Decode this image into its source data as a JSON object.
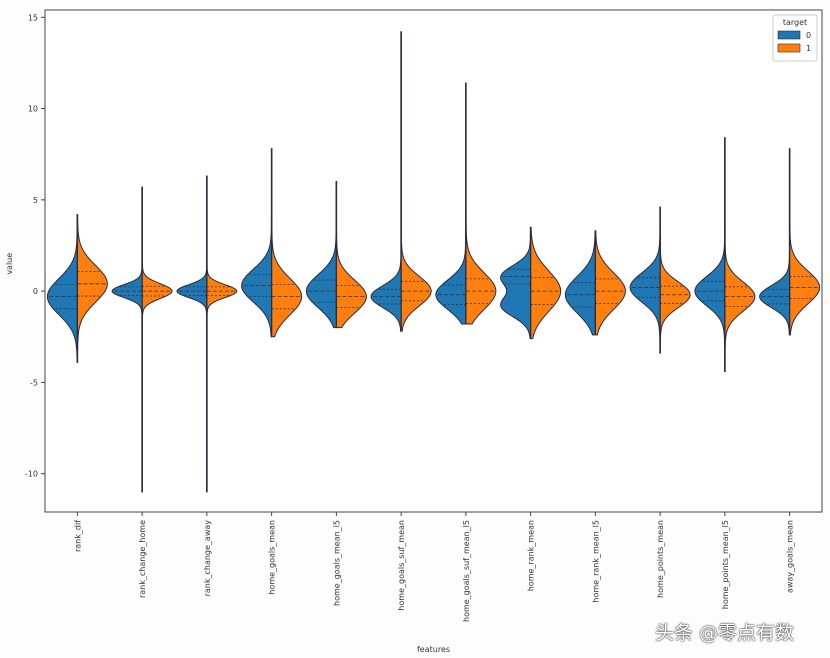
{
  "chart_data": {
    "type": "violin",
    "title": "",
    "xlabel": "features",
    "ylabel": "value",
    "ylim": [
      -12.1,
      15.4
    ],
    "yticks": [
      -10,
      -5,
      0,
      5,
      10,
      15
    ],
    "grid": false,
    "legend": {
      "title": "target",
      "placement": "top-right",
      "entries": [
        {
          "label": "0",
          "color": "#1f77b4"
        },
        {
          "label": "1",
          "color": "#ff7f0e"
        }
      ]
    },
    "categories": [
      "rank_dif",
      "rank_change_home",
      "rank_change_away",
      "home_goals_mean",
      "home_goals_mean_l5",
      "home_goals_suf_mean",
      "home_goals_suf_mean_l5",
      "home_rank_mean",
      "home_rank_mean_l5",
      "home_points_mean",
      "home_points_mean_l5",
      "away_goals_mean"
    ],
    "range": [
      [
        -3.9,
        4.2
      ],
      [
        -11,
        5.7
      ],
      [
        -11,
        6.3
      ],
      [
        -2.5,
        7.8
      ],
      [
        -2.0,
        6.0
      ],
      [
        -2.2,
        14.2
      ],
      [
        -1.8,
        11.4
      ],
      [
        -2.6,
        3.5
      ],
      [
        -2.4,
        3.3
      ],
      [
        -3.4,
        4.6
      ],
      [
        -4.4,
        8.4
      ],
      [
        -2.4,
        7.8
      ]
    ],
    "series": [
      {
        "name": "0",
        "color": "#1f77b4",
        "modes": [
          [
            [
              -0.3,
              1.0,
              1
            ]
          ],
          [
            [
              0,
              0.35,
              1
            ]
          ],
          [
            [
              0,
              0.35,
              1
            ]
          ],
          [
            [
              0.3,
              0.9,
              1
            ]
          ],
          [
            [
              0,
              0.9,
              1
            ]
          ],
          [
            [
              -0.3,
              0.6,
              1
            ]
          ],
          [
            [
              -0.2,
              0.8,
              1
            ]
          ],
          [
            [
              0.8,
              0.6,
              1
            ],
            [
              -0.8,
              0.6,
              1
            ]
          ],
          [
            [
              -0.2,
              1.0,
              1
            ]
          ],
          [
            [
              0.2,
              0.8,
              1
            ]
          ],
          [
            [
              0,
              0.8,
              1
            ]
          ],
          [
            [
              -0.3,
              0.6,
              1
            ]
          ]
        ]
      },
      {
        "name": "1",
        "color": "#ff7f0e",
        "modes": [
          [
            [
              0.4,
              1.0,
              1
            ]
          ],
          [
            [
              0,
              0.4,
              1
            ]
          ],
          [
            [
              0,
              0.35,
              1
            ]
          ],
          [
            [
              -0.3,
              1.0,
              1
            ]
          ],
          [
            [
              -0.3,
              0.9,
              1
            ]
          ],
          [
            [
              0,
              0.8,
              1
            ]
          ],
          [
            [
              0,
              1.0,
              1
            ]
          ],
          [
            [
              0,
              1.1,
              1
            ]
          ],
          [
            [
              0,
              1.0,
              1
            ]
          ],
          [
            [
              -0.2,
              0.7,
              1
            ]
          ],
          [
            [
              -0.3,
              0.8,
              1
            ]
          ],
          [
            [
              0.2,
              0.9,
              1
            ]
          ]
        ]
      }
    ]
  },
  "watermark": "头条 @零点有数"
}
